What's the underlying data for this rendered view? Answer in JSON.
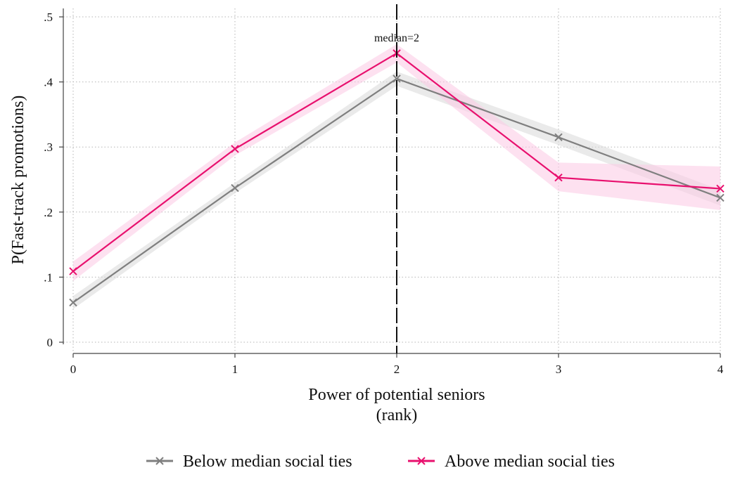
{
  "chart_data": {
    "type": "line",
    "title": "",
    "xlabel": "Power of potential seniors",
    "xlabel_sub": "(rank)",
    "ylabel": "P(Fast-track promotions)",
    "x": [
      0,
      1,
      2,
      3,
      4
    ],
    "x_tick_labels": [
      "0",
      "1",
      "2",
      "3",
      "4"
    ],
    "xlim": [
      0,
      4
    ],
    "ylim": [
      0,
      0.5
    ],
    "y_ticks": [
      0,
      0.1,
      0.2,
      0.3,
      0.4,
      0.5
    ],
    "y_tick_labels": [
      "0",
      ".1",
      ".2",
      ".3",
      ".4",
      ".5"
    ],
    "grid": true,
    "legend_position": "bottom",
    "series": [
      {
        "name": "Below median social ties",
        "color": "#7f7f7f",
        "band_color": "#d9d9d9",
        "marker": "x",
        "values": [
          0.061,
          0.237,
          0.405,
          0.315,
          0.222
        ],
        "ci_low": [
          0.051,
          0.229,
          0.394,
          0.303,
          0.21
        ],
        "ci_high": [
          0.071,
          0.245,
          0.416,
          0.327,
          0.234
        ]
      },
      {
        "name": "Above median social ties",
        "color": "#e8106e",
        "band_color": "#fbc8e3",
        "marker": "x",
        "values": [
          0.109,
          0.297,
          0.444,
          0.253,
          0.236
        ],
        "ci_low": [
          0.094,
          0.287,
          0.43,
          0.232,
          0.203
        ],
        "ci_high": [
          0.124,
          0.307,
          0.458,
          0.276,
          0.27
        ]
      }
    ],
    "annotations": [
      {
        "text": "median=2",
        "x": 2,
        "style": "dashed vertical line"
      }
    ]
  }
}
